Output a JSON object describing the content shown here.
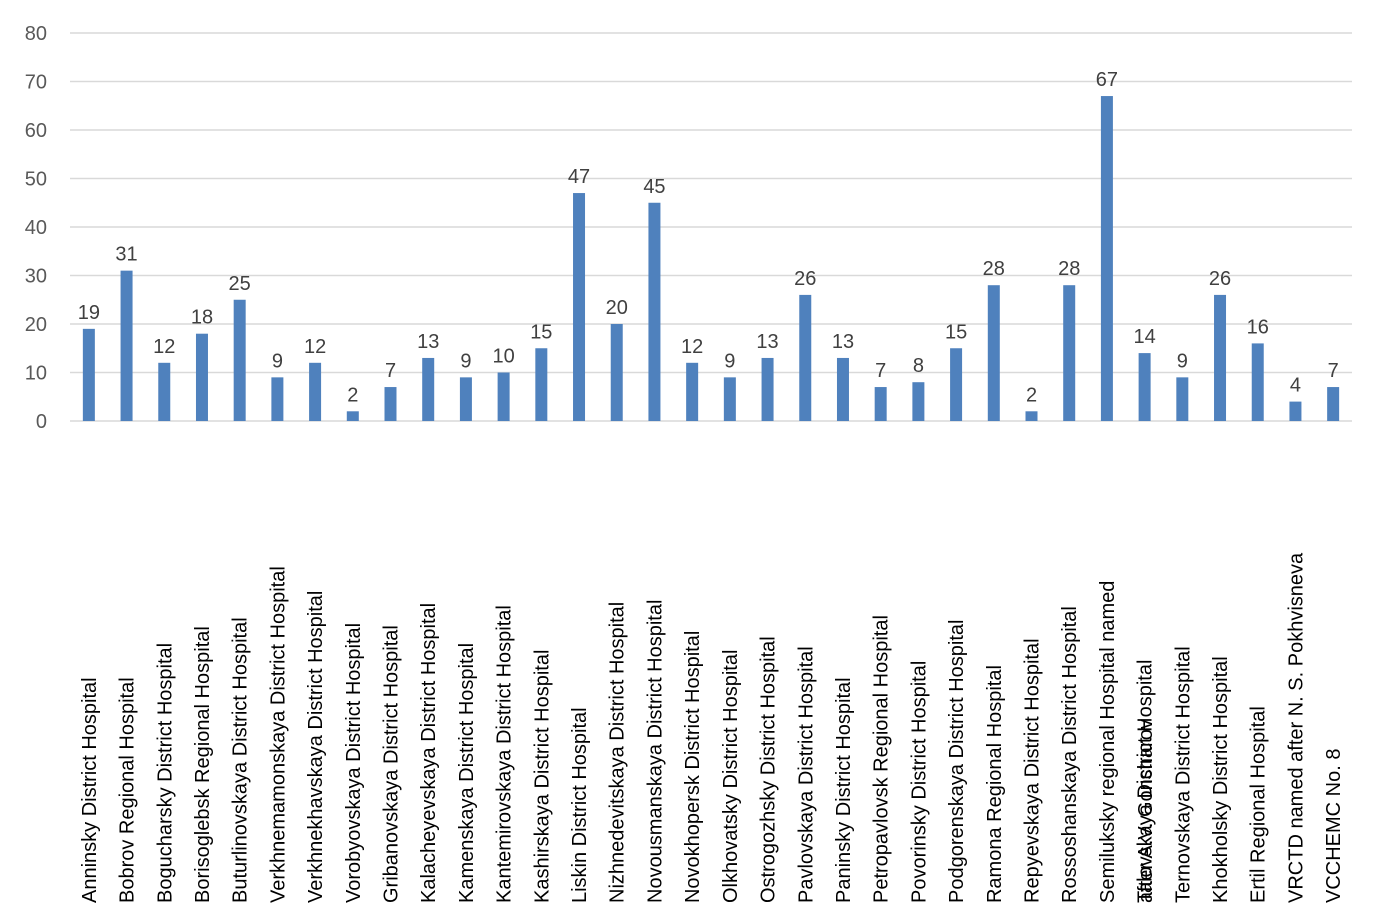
{
  "chart_data": {
    "type": "bar",
    "title": "",
    "xlabel": "",
    "ylabel": "",
    "ylim": [
      0,
      80
    ],
    "yticks": [
      0,
      10,
      20,
      30,
      40,
      50,
      60,
      70,
      80
    ],
    "grid": true,
    "legend": "none",
    "color": "#4f81bd",
    "categories": [
      [
        "Anninsky District Hospital"
      ],
      [
        "Bobrov Regional Hospital"
      ],
      [
        "Bogucharsky District Hospital"
      ],
      [
        "Borisoglebsk Regional Hospital"
      ],
      [
        "Buturlinovskaya District Hospital"
      ],
      [
        "Verkhnemamonskaya District Hospital"
      ],
      [
        "Verkhnekhavskaya District Hospital"
      ],
      [
        "Vorobyovskaya District Hospital"
      ],
      [
        "Gribanovskaya District Hospital"
      ],
      [
        "Kalacheyevskaya District Hospital"
      ],
      [
        "Kamenskaya District Hospital"
      ],
      [
        "Kantemirovskaya District Hospital"
      ],
      [
        "Kashirskaya District Hospital"
      ],
      [
        "Liskin District Hospital"
      ],
      [
        "Nizhnedevitskaya District Hospital"
      ],
      [
        "Novousmanskaya District Hospital"
      ],
      [
        "Novokhopersk District Hospital"
      ],
      [
        "Olkhovatsky District Hospital"
      ],
      [
        "Ostrogozhsky District Hospital"
      ],
      [
        "Pavlovskaya District Hospital"
      ],
      [
        "Paninsky District Hospital"
      ],
      [
        "Petropavlovsk Regional Hospital"
      ],
      [
        "Povorinsky District Hospital"
      ],
      [
        "Podgorenskaya District Hospital"
      ],
      [
        "Ramona Regional Hospital"
      ],
      [
        "Repyevskaya District Hospital"
      ],
      [
        "Rossoshanskaya District Hospital"
      ],
      [
        "Semiluksky regional Hospital named",
        "after A.V. Goncharov"
      ],
      [
        "Talovskaya District Hospital"
      ],
      [
        "Ternovskaya District Hospital"
      ],
      [
        "Khokholsky District Hospital"
      ],
      [
        "Ertil Regional Hospital"
      ],
      [
        "VRCTD named after N. S. Pokhvisneva"
      ],
      [
        "VCCHEMC No. 8"
      ]
    ],
    "values": [
      19,
      31,
      12,
      18,
      25,
      9,
      12,
      2,
      7,
      13,
      9,
      10,
      15,
      47,
      20,
      45,
      12,
      9,
      13,
      26,
      13,
      7,
      8,
      15,
      28,
      2,
      28,
      67,
      14,
      9,
      26,
      16,
      4,
      7
    ],
    "data_labels": [
      "19",
      "31",
      "12",
      "18",
      "25",
      "9",
      "12",
      "2",
      "7",
      "13",
      "9",
      "10",
      "15",
      "47",
      "20",
      "45",
      "12",
      "9",
      "13",
      "26",
      "13",
      "7",
      "8",
      "15",
      "28",
      "2",
      "28",
      "67",
      "14",
      "9",
      "26",
      "16",
      "4",
      "7"
    ]
  }
}
